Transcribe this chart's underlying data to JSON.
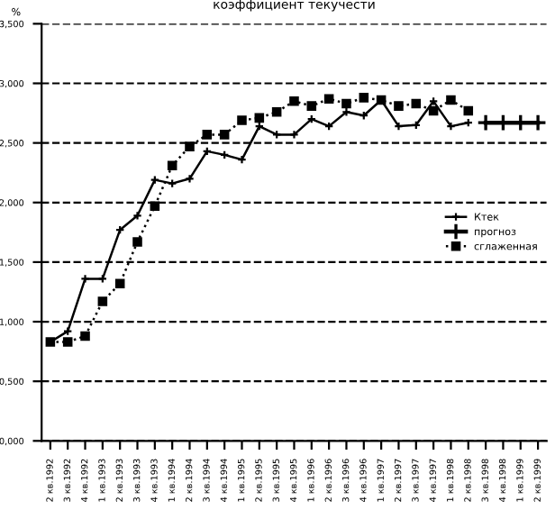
{
  "chart_data": {
    "type": "line",
    "title": "коэффициент текучести",
    "ylabel": "%",
    "categories": [
      "2 кв.1992",
      "3 кв.1992",
      "4 кв.1992",
      "1 кв.1993",
      "2 кв.1993",
      "3 кв.1993",
      "4 кв.1993",
      "1 кв.1994",
      "2 кв.1994",
      "3 кв.1994",
      "4 кв.1994",
      "1 кв.1995",
      "2 кв.1995",
      "3 кв.1995",
      "4 кв.1995",
      "1 кв.1996",
      "2 кв.1996",
      "3 кв.1996",
      "4 кв.1996",
      "1 кв.1997",
      "2 кв.1997",
      "3 кв.1997",
      "4 кв.1997",
      "1 кв.1998",
      "2 кв.1998",
      "3 кв.1998",
      "4 кв.1998",
      "1 кв.1999",
      "2 кв.1999"
    ],
    "series": [
      {
        "name": "Ктек",
        "color": "#000000",
        "marker": "cross",
        "line_style": "solid",
        "values": [
          0.83,
          0.92,
          1.36,
          1.36,
          1.77,
          1.89,
          2.19,
          2.16,
          2.2,
          2.43,
          2.4,
          2.36,
          2.64,
          2.57,
          2.57,
          2.7,
          2.64,
          2.76,
          2.73,
          2.86,
          2.64,
          2.65,
          2.85,
          2.64,
          2.67,
          null,
          null,
          null,
          null
        ]
      },
      {
        "name": "прогноз",
        "color": "#000000",
        "marker": "cross",
        "line_style": "solid",
        "values": [
          null,
          null,
          null,
          null,
          null,
          null,
          null,
          null,
          null,
          null,
          null,
          null,
          null,
          null,
          null,
          null,
          null,
          null,
          null,
          null,
          null,
          null,
          null,
          null,
          null,
          2.67,
          2.67,
          2.67,
          2.67
        ]
      },
      {
        "name": "сглаженная",
        "color": "#000000",
        "marker": "square",
        "line_style": "dotted",
        "values": [
          0.83,
          0.83,
          0.88,
          1.17,
          1.32,
          1.67,
          1.97,
          2.31,
          2.47,
          2.57,
          2.57,
          2.69,
          2.71,
          2.76,
          2.85,
          2.81,
          2.87,
          2.83,
          2.88,
          2.86,
          2.81,
          2.83,
          2.77,
          2.86,
          2.77,
          null,
          null,
          null,
          null
        ]
      }
    ],
    "ylim": [
      0,
      3.5
    ],
    "yticks": [
      {
        "value": 0,
        "label": "0,000"
      },
      {
        "value": 0.5,
        "label": "0,500"
      },
      {
        "value": 1,
        "label": "1,000"
      },
      {
        "value": 1.5,
        "label": "1,500"
      },
      {
        "value": 2,
        "label": "2,000"
      },
      {
        "value": 2.5,
        "label": "2,500"
      },
      {
        "value": 3,
        "label": "3,000"
      },
      {
        "value": 3.5,
        "label": "3,500"
      }
    ],
    "grid": "y",
    "legend": "center right"
  }
}
